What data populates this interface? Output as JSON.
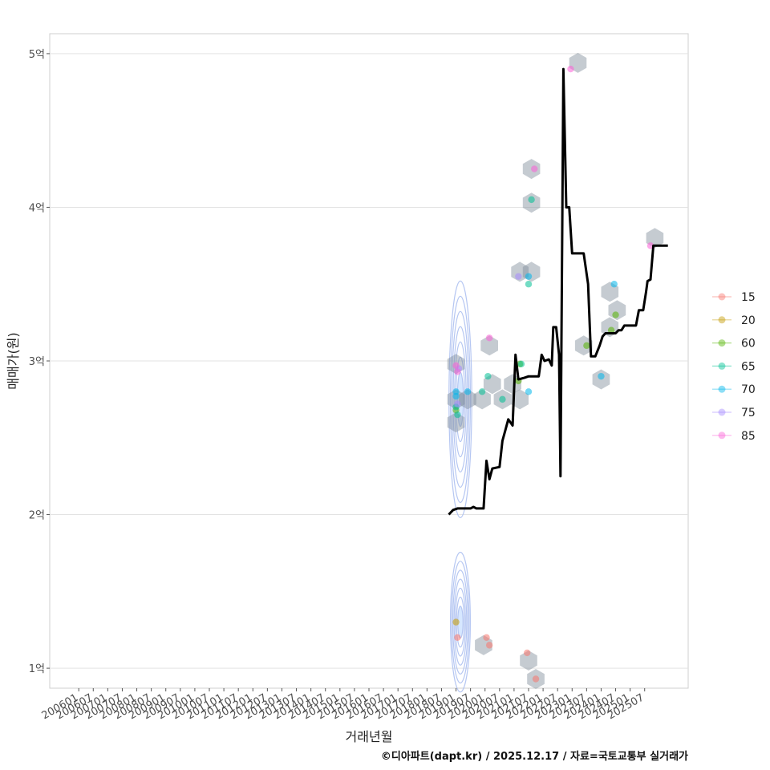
{
  "chart_data": {
    "type": "scatter",
    "ylabel": "매매가(원)",
    "xlabel": "거래년월",
    "caption": "©디아파트(dapt.kr) / 2025.12.17 / 자료=국토교통부 실거래가",
    "ylim": [
      0.87,
      5.13
    ],
    "y_ticks": [
      {
        "value": 1,
        "label": "1억"
      },
      {
        "value": 2,
        "label": "2억"
      },
      {
        "value": 3,
        "label": "3억"
      },
      {
        "value": 4,
        "label": "4억"
      },
      {
        "value": 5,
        "label": "5억"
      }
    ],
    "x_range": [
      2005.0,
      2027.0
    ],
    "x_ticks": [
      "200601",
      "200607",
      "200701",
      "200707",
      "200801",
      "200807",
      "200901",
      "200907",
      "201001",
      "201007",
      "201101",
      "201107",
      "201201",
      "201207",
      "201301",
      "201307",
      "201401",
      "201407",
      "201501",
      "201507",
      "201601",
      "201607",
      "201701",
      "201707",
      "201801",
      "201807",
      "201901",
      "201907",
      "202001",
      "202007",
      "202101",
      "202107",
      "202201",
      "202207",
      "202301",
      "202307",
      "202401",
      "202407",
      "202501",
      "202507"
    ],
    "legend": [
      {
        "label": "15",
        "color": "#F8766D"
      },
      {
        "label": "20",
        "color": "#C49A00"
      },
      {
        "label": "60",
        "color": "#53B400"
      },
      {
        "label": "65",
        "color": "#00C094"
      },
      {
        "label": "70",
        "color": "#00B6EB"
      },
      {
        "label": "75",
        "color": "#A58AFF"
      },
      {
        "label": "85",
        "color": "#FB61D7"
      }
    ],
    "series": [
      {
        "name": "15",
        "points": [
          [
            2019.05,
            1.2
          ],
          [
            2020.05,
            1.2
          ],
          [
            2020.15,
            1.15
          ],
          [
            2021.45,
            1.1
          ],
          [
            2021.75,
            0.93
          ]
        ]
      },
      {
        "name": "20",
        "points": [
          [
            2019.0,
            1.3
          ]
        ]
      },
      {
        "name": "60",
        "points": [
          [
            2019.0,
            2.68
          ],
          [
            2021.2,
            2.98
          ],
          [
            2021.15,
            2.87
          ],
          [
            2023.5,
            3.1
          ],
          [
            2024.5,
            3.3
          ],
          [
            2024.35,
            3.2
          ]
        ]
      },
      {
        "name": "65",
        "points": [
          [
            2019.0,
            2.7
          ],
          [
            2019.05,
            2.65
          ],
          [
            2019.9,
            2.8
          ],
          [
            2020.1,
            2.9
          ],
          [
            2020.6,
            2.75
          ],
          [
            2021.6,
            4.05
          ],
          [
            2021.5,
            3.5
          ],
          [
            2021.25,
            2.98
          ]
        ]
      },
      {
        "name": "70",
        "points": [
          [
            2019.0,
            2.8
          ],
          [
            2019.0,
            2.77
          ],
          [
            2019.4,
            2.8
          ],
          [
            2021.5,
            3.55
          ],
          [
            2021.5,
            2.8
          ],
          [
            2024.0,
            2.9
          ],
          [
            2024.45,
            3.5
          ]
        ]
      },
      {
        "name": "75",
        "points": [
          [
            2019.1,
            2.95
          ],
          [
            2021.15,
            3.55
          ],
          [
            2019.05,
            2.72
          ]
        ]
      },
      {
        "name": "85",
        "points": [
          [
            2019.0,
            2.97
          ],
          [
            2019.05,
            2.93
          ],
          [
            2020.15,
            3.15
          ],
          [
            2021.7,
            4.25
          ],
          [
            2022.95,
            4.9
          ],
          [
            2025.7,
            3.75
          ]
        ]
      }
    ],
    "hexbins": [
      [
        2019.0,
        2.98
      ],
      [
        2019.0,
        2.75
      ],
      [
        2019.0,
        2.6
      ],
      [
        2019.4,
        2.75
      ],
      [
        2019.9,
        2.75
      ],
      [
        2020.25,
        2.85
      ],
      [
        2020.6,
        2.75
      ],
      [
        2020.95,
        2.85
      ],
      [
        2021.2,
        2.75
      ],
      [
        2020.15,
        3.1
      ],
      [
        2021.2,
        3.58
      ],
      [
        2021.6,
        3.58
      ],
      [
        2021.6,
        4.25
      ],
      [
        2021.6,
        4.03
      ],
      [
        2021.75,
        0.93
      ],
      [
        2021.5,
        1.05
      ],
      [
        2019.95,
        1.15
      ],
      [
        2023.2,
        4.94
      ],
      [
        2023.4,
        3.1
      ],
      [
        2024.0,
        2.88
      ],
      [
        2024.3,
        3.45
      ],
      [
        2024.55,
        3.33
      ],
      [
        2024.3,
        3.22
      ],
      [
        2025.85,
        3.8
      ]
    ],
    "density_centers": [
      {
        "x": 2019.15,
        "y": 2.75,
        "sx": 0.16,
        "sy": 0.22
      },
      {
        "x": 2019.15,
        "y": 1.3,
        "sx": 0.14,
        "sy": 0.13
      }
    ],
    "trend_line": [
      [
        2018.75,
        2.0
      ],
      [
        2018.9,
        2.03
      ],
      [
        2019.05,
        2.04
      ],
      [
        2019.5,
        2.04
      ],
      [
        2019.6,
        2.05
      ],
      [
        2019.7,
        2.04
      ],
      [
        2019.95,
        2.04
      ],
      [
        2020.05,
        2.35
      ],
      [
        2020.15,
        2.23
      ],
      [
        2020.25,
        2.3
      ],
      [
        2020.5,
        2.31
      ],
      [
        2020.6,
        2.48
      ],
      [
        2020.7,
        2.55
      ],
      [
        2020.8,
        2.62
      ],
      [
        2020.95,
        2.58
      ],
      [
        2021.05,
        3.04
      ],
      [
        2021.15,
        2.88
      ],
      [
        2021.35,
        2.89
      ],
      [
        2021.5,
        2.9
      ],
      [
        2021.85,
        2.9
      ],
      [
        2021.95,
        3.04
      ],
      [
        2022.05,
        3.0
      ],
      [
        2022.2,
        3.01
      ],
      [
        2022.3,
        2.97
      ],
      [
        2022.35,
        3.22
      ],
      [
        2022.45,
        3.22
      ],
      [
        2022.55,
        3.04
      ],
      [
        2022.6,
        2.25
      ],
      [
        2022.7,
        4.9
      ],
      [
        2022.8,
        4.0
      ],
      [
        2022.9,
        4.0
      ],
      [
        2023.0,
        3.7
      ],
      [
        2023.4,
        3.7
      ],
      [
        2023.55,
        3.5
      ],
      [
        2023.65,
        3.03
      ],
      [
        2023.8,
        3.03
      ],
      [
        2023.95,
        3.1
      ],
      [
        2024.05,
        3.16
      ],
      [
        2024.15,
        3.18
      ],
      [
        2024.5,
        3.18
      ],
      [
        2024.6,
        3.2
      ],
      [
        2024.7,
        3.2
      ],
      [
        2024.8,
        3.23
      ],
      [
        2025.2,
        3.23
      ],
      [
        2025.3,
        3.33
      ],
      [
        2025.45,
        3.33
      ],
      [
        2025.55,
        3.45
      ],
      [
        2025.6,
        3.52
      ],
      [
        2025.7,
        3.53
      ],
      [
        2025.8,
        3.75
      ],
      [
        2026.3,
        3.75
      ]
    ]
  }
}
